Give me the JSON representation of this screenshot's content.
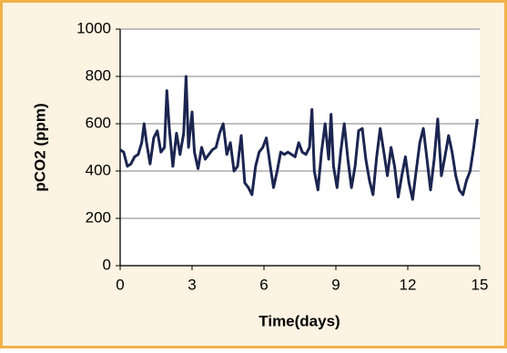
{
  "chart_data": {
    "type": "line",
    "x_label": "Time(days)",
    "y_label": "pCO2 (ppm)",
    "x": [
      0,
      0.15,
      0.3,
      0.45,
      0.6,
      0.75,
      0.9,
      1.0,
      1.1,
      1.25,
      1.4,
      1.55,
      1.7,
      1.85,
      1.95,
      2.05,
      2.2,
      2.35,
      2.5,
      2.65,
      2.75,
      2.85,
      3.0,
      3.1,
      3.25,
      3.4,
      3.55,
      3.7,
      3.85,
      4.0,
      4.15,
      4.3,
      4.45,
      4.6,
      4.75,
      4.9,
      5.05,
      5.2,
      5.35,
      5.5,
      5.65,
      5.8,
      5.95,
      6.1,
      6.25,
      6.4,
      6.55,
      6.7,
      6.85,
      7.0,
      7.15,
      7.3,
      7.45,
      7.6,
      7.75,
      7.9,
      8.0,
      8.1,
      8.25,
      8.4,
      8.55,
      8.7,
      8.8,
      8.9,
      9.05,
      9.2,
      9.35,
      9.5,
      9.65,
      9.8,
      9.95,
      10.1,
      10.25,
      10.4,
      10.55,
      10.7,
      10.85,
      11.0,
      11.15,
      11.3,
      11.45,
      11.6,
      11.75,
      11.9,
      12.05,
      12.2,
      12.35,
      12.5,
      12.65,
      12.8,
      12.95,
      13.1,
      13.25,
      13.4,
      13.55,
      13.7,
      13.85,
      14.0,
      14.15,
      14.3,
      14.45,
      14.6,
      14.75,
      14.9
    ],
    "values": [
      490,
      480,
      420,
      430,
      460,
      470,
      520,
      600,
      520,
      430,
      540,
      570,
      480,
      500,
      740,
      580,
      420,
      560,
      470,
      560,
      800,
      500,
      650,
      480,
      410,
      500,
      450,
      470,
      490,
      500,
      560,
      600,
      470,
      520,
      400,
      420,
      550,
      350,
      330,
      300,
      420,
      480,
      500,
      540,
      430,
      330,
      400,
      480,
      470,
      480,
      470,
      460,
      520,
      480,
      470,
      500,
      660,
      400,
      320,
      480,
      600,
      450,
      640,
      420,
      330,
      480,
      600,
      450,
      330,
      420,
      570,
      580,
      450,
      360,
      300,
      460,
      580,
      480,
      380,
      500,
      420,
      290,
      380,
      460,
      350,
      280,
      400,
      520,
      580,
      450,
      320,
      450,
      620,
      380,
      460,
      550,
      480,
      380,
      320,
      300,
      360,
      400,
      500,
      620
    ],
    "color": "#1b2550",
    "xlim": [
      0,
      15
    ],
    "xticks": [
      0,
      3,
      6,
      9,
      12,
      15
    ],
    "ylim": [
      0,
      1000
    ],
    "yticks": [
      0,
      200,
      400,
      600,
      800,
      1000
    ],
    "grid": true
  }
}
